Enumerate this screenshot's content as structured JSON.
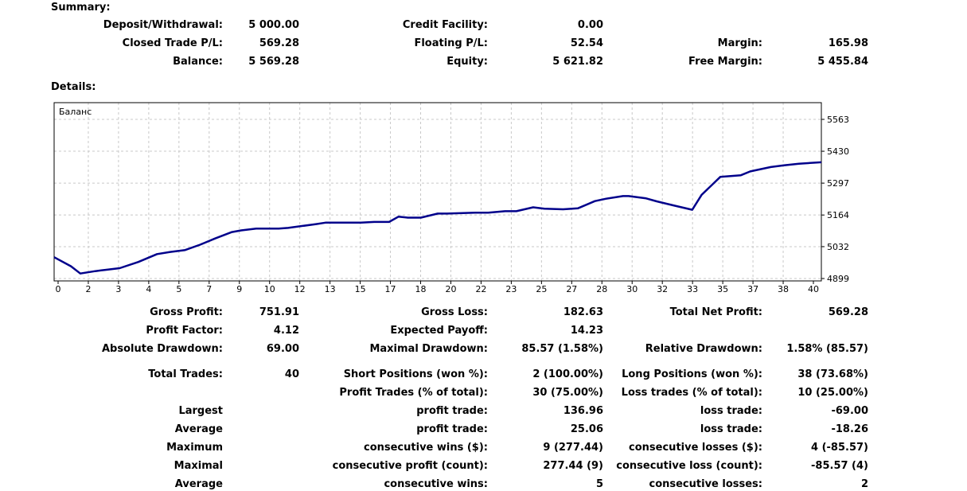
{
  "summary": {
    "title": "Summary:",
    "deposit_label": "Deposit/Withdrawal:",
    "deposit_value": "5 000.00",
    "credit_label": "Credit Facility:",
    "credit_value": "0.00",
    "closed_label": "Closed Trade P/L:",
    "closed_value": "569.28",
    "floating_label": "Floating P/L:",
    "floating_value": "52.54",
    "margin_label": "Margin:",
    "margin_value": "165.98",
    "balance_label": "Balance:",
    "balance_value": "5 569.28",
    "equity_label": "Equity:",
    "equity_value": "5 621.82",
    "free_margin_label": "Free Margin:",
    "free_margin_value": "5 455.84"
  },
  "details": {
    "title": "Details:",
    "gross_profit_label": "Gross Profit:",
    "gross_profit_value": "751.91",
    "gross_loss_label": "Gross Loss:",
    "gross_loss_value": "182.63",
    "total_net_label": "Total Net Profit:",
    "total_net_value": "569.28",
    "profit_factor_label": "Profit Factor:",
    "profit_factor_value": "4.12",
    "expected_payoff_label": "Expected Payoff:",
    "expected_payoff_value": "14.23",
    "abs_dd_label": "Absolute Drawdown:",
    "abs_dd_value": "69.00",
    "max_dd_label": "Maximal Drawdown:",
    "max_dd_value": "85.57 (1.58%)",
    "rel_dd_label": "Relative Drawdown:",
    "rel_dd_value": "1.58% (85.57)",
    "total_trades_label": "Total Trades:",
    "total_trades_value": "40",
    "short_label": "Short Positions (won %):",
    "short_value": "2 (100.00%)",
    "long_label": "Long Positions (won %):",
    "long_value": "38 (73.68%)",
    "profit_trades_label": "Profit Trades (% of total):",
    "profit_trades_value": "30 (75.00%)",
    "loss_trades_label": "Loss trades (% of total):",
    "loss_trades_value": "10 (25.00%)",
    "largest_label": "Largest",
    "largest_profit_label": "profit trade:",
    "largest_profit_value": "136.96",
    "largest_loss_label": "loss trade:",
    "largest_loss_value": "-69.00",
    "average_label": "Average",
    "average_profit_label": "profit trade:",
    "average_profit_value": "25.06",
    "average_loss_label": "loss trade:",
    "average_loss_value": "-18.26",
    "maximum_label": "Maximum",
    "max_cons_wins_label": "consecutive wins ($):",
    "max_cons_wins_value": "9 (277.44)",
    "max_cons_losses_label": "consecutive losses ($):",
    "max_cons_losses_value": "4 (-85.57)",
    "maximal_label": "Maximal",
    "maximal_cons_profit_label": "consecutive profit (count):",
    "maximal_cons_profit_value": "277.44 (9)",
    "maximal_cons_loss_label": "consecutive loss (count):",
    "maximal_cons_loss_value": "-85.57 (4)",
    "average2_label": "Average",
    "avg_cons_wins_label": "consecutive wins:",
    "avg_cons_wins_value": "5",
    "avg_cons_losses_label": "consecutive losses:",
    "avg_cons_losses_value": "2"
  },
  "chart_data": {
    "type": "line",
    "title": "Баланс",
    "xlabel": "",
    "ylabel": "",
    "x_tick_labels": [
      "0",
      "2",
      "3",
      "4",
      "5",
      "7",
      "9",
      "10",
      "12",
      "13",
      "15",
      "17",
      "18",
      "20",
      "22",
      "23",
      "25",
      "27",
      "28",
      "30",
      "32",
      "33",
      "35",
      "37",
      "38",
      "40"
    ],
    "y_tick_labels": [
      "5563",
      "5430",
      "5297",
      "5164",
      "5032",
      "4899"
    ],
    "y_tick_values": [
      5563,
      5430,
      5297,
      5164,
      5032,
      4899
    ],
    "ylim": [
      4899,
      5563
    ],
    "xlim": [
      0,
      41
    ],
    "grid": true,
    "line_color": "#00008b",
    "series": [
      {
        "name": "Баланс",
        "x": [
          0,
          0.9,
          1.4,
          2.2,
          2.7,
          3.5,
          4.5,
          5.5,
          6.2,
          7.0,
          7.8,
          8.6,
          9.5,
          10.0,
          10.8,
          12.0,
          12.5,
          14.0,
          14.5,
          15.3,
          16.4,
          17.1,
          17.9,
          18.4,
          18.9,
          19.6,
          20.5,
          21.0,
          22.5,
          23.2,
          24.1,
          24.7,
          25.6,
          26.2,
          27.2,
          28.0,
          28.9,
          29.5,
          30.4,
          30.7,
          31.6,
          32.2,
          33.1,
          34.1,
          34.6,
          35.6,
          36.7,
          37.2,
          38.3,
          39.0,
          39.8,
          41.0
        ],
        "y": [
          4988,
          4950,
          4920,
          4930,
          4935,
          4942,
          4968,
          5001,
          5010,
          5018,
          5040,
          5066,
          5093,
          5100,
          5107,
          5107,
          5110,
          5126,
          5132,
          5132,
          5132,
          5135,
          5135,
          5157,
          5153,
          5153,
          5170,
          5170,
          5174,
          5174,
          5180,
          5180,
          5196,
          5190,
          5188,
          5192,
          5222,
          5232,
          5243,
          5243,
          5234,
          5221,
          5204,
          5186,
          5248,
          5323,
          5330,
          5346,
          5364,
          5371,
          5378,
          5384
        ]
      }
    ]
  }
}
